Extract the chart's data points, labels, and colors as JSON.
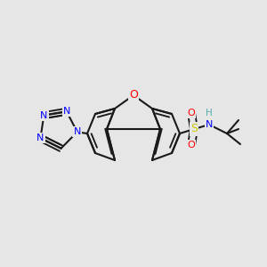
{
  "background_color": "#e6e6e6",
  "bond_color": "#1a1a1a",
  "bond_width": 1.5,
  "atom_colors": {
    "O": "#ff0000",
    "N": "#0000ff",
    "S": "#cccc00",
    "NH": "#5aadad",
    "C": "#1a1a1a"
  },
  "font_size_atom": 9,
  "font_size_small": 7.5
}
